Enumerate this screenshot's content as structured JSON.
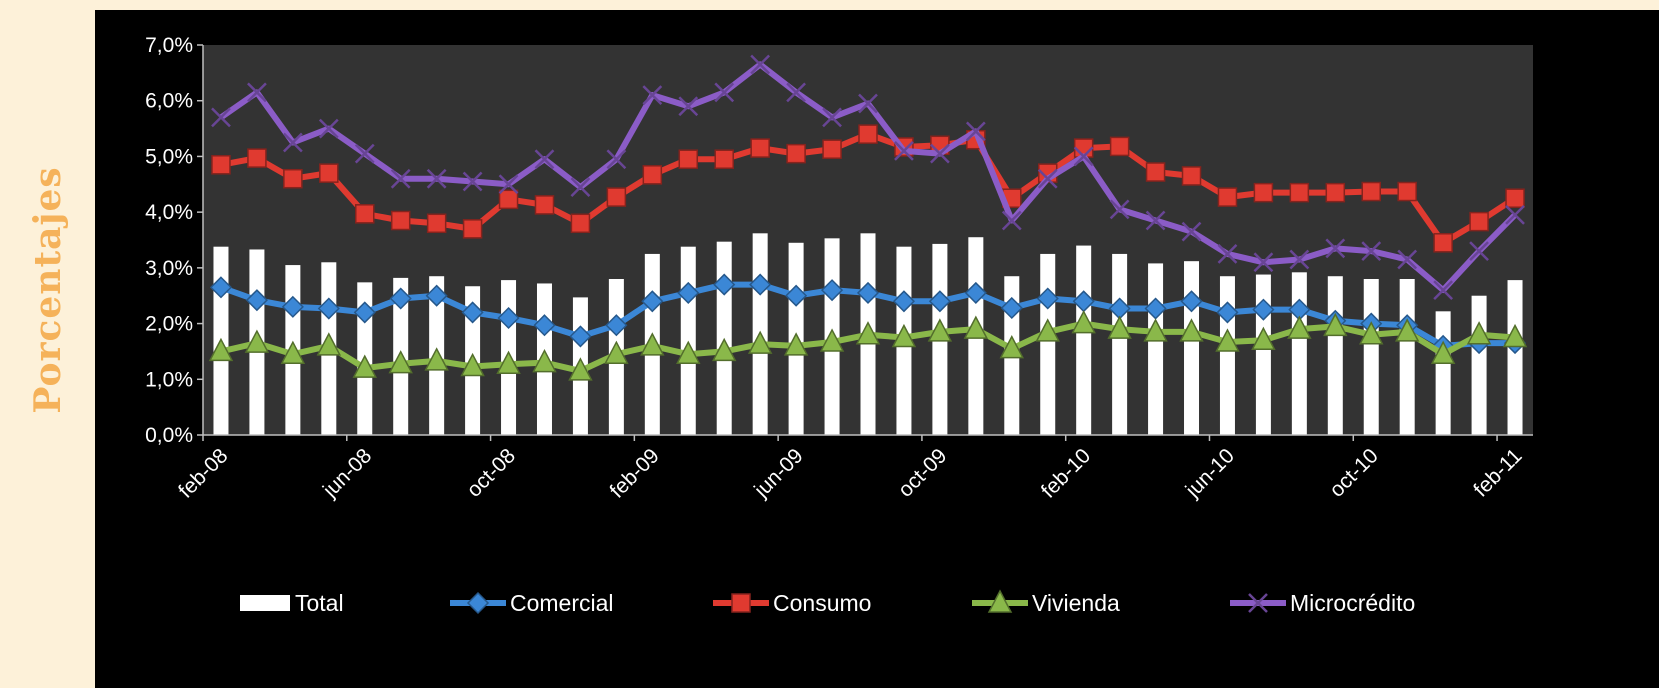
{
  "y_axis_title": "Porcentajes",
  "chart_data": {
    "type": "bar+line",
    "ylabel": "Porcentajes",
    "ylim": [
      0,
      7
    ],
    "y_ticks": [
      "0,0%",
      "1,0%",
      "2,0%",
      "3,0%",
      "4,0%",
      "5,0%",
      "6,0%",
      "7,0%"
    ],
    "categories": [
      "feb-08",
      "mar-08",
      "abr-08",
      "may-08",
      "jun-08",
      "jul-08",
      "ago-08",
      "sep-08",
      "oct-08",
      "nov-08",
      "dic-08",
      "ene-09",
      "feb-09",
      "mar-09",
      "abr-09",
      "may-09",
      "jun-09",
      "jul-09",
      "ago-09",
      "sep-09",
      "oct-09",
      "nov-09",
      "dic-09",
      "ene-10",
      "feb-10",
      "mar-10",
      "abr-10",
      "may-10",
      "jun-10",
      "jul-10",
      "ago-10",
      "sep-10",
      "oct-10",
      "nov-10",
      "dic-10",
      "ene-11",
      "feb-11"
    ],
    "x_tick_labels": [
      "feb-08",
      "jun-08",
      "oct-08",
      "feb-09",
      "jun-09",
      "oct-09",
      "feb-10",
      "jun-10",
      "oct-10",
      "feb-11"
    ],
    "legend_position": "bottom",
    "grid": false,
    "series": [
      {
        "name": "Total",
        "kind": "bar",
        "color": "#ffffff",
        "values": [
          3.38,
          3.33,
          3.05,
          3.1,
          2.74,
          2.82,
          2.85,
          2.67,
          2.78,
          2.72,
          2.47,
          2.8,
          3.25,
          3.38,
          3.47,
          3.62,
          3.45,
          3.53,
          3.62,
          3.38,
          3.43,
          3.55,
          2.85,
          3.25,
          3.4,
          3.25,
          3.08,
          3.12,
          2.85,
          2.88,
          2.92,
          2.85,
          2.8,
          2.8,
          2.22,
          2.5,
          2.78
        ]
      },
      {
        "name": "Comercial",
        "kind": "line",
        "marker": "diamond",
        "color": "#3b87d6",
        "values": [
          2.65,
          2.42,
          2.3,
          2.27,
          2.2,
          2.45,
          2.5,
          2.2,
          2.1,
          1.97,
          1.77,
          1.97,
          2.4,
          2.55,
          2.7,
          2.7,
          2.5,
          2.6,
          2.55,
          2.4,
          2.4,
          2.55,
          2.28,
          2.45,
          2.4,
          2.27,
          2.27,
          2.4,
          2.2,
          2.25,
          2.25,
          2.05,
          2.0,
          1.97,
          1.6,
          1.65,
          1.65
        ]
      },
      {
        "name": "Consumo",
        "kind": "line",
        "marker": "square",
        "color": "#e03a30",
        "values": [
          4.85,
          4.97,
          4.6,
          4.7,
          3.97,
          3.85,
          3.8,
          3.7,
          4.23,
          4.13,
          3.8,
          4.27,
          4.67,
          4.95,
          4.95,
          5.15,
          5.05,
          5.13,
          5.4,
          5.17,
          5.2,
          5.3,
          4.25,
          4.7,
          5.15,
          5.18,
          4.72,
          4.65,
          4.27,
          4.35,
          4.35,
          4.35,
          4.37,
          4.37,
          3.45,
          3.83,
          4.25
        ]
      },
      {
        "name": "Vivienda",
        "kind": "line",
        "marker": "triangle",
        "color": "#8ab84a",
        "values": [
          1.5,
          1.65,
          1.45,
          1.6,
          1.2,
          1.28,
          1.33,
          1.23,
          1.27,
          1.3,
          1.15,
          1.45,
          1.6,
          1.45,
          1.5,
          1.63,
          1.6,
          1.67,
          1.8,
          1.75,
          1.85,
          1.9,
          1.55,
          1.85,
          2.0,
          1.9,
          1.85,
          1.85,
          1.67,
          1.7,
          1.9,
          1.95,
          1.8,
          1.85,
          1.45,
          1.8,
          1.75
        ]
      },
      {
        "name": "Microcrédito",
        "kind": "line",
        "marker": "x",
        "color": "#8b5cc7",
        "values": [
          5.7,
          6.15,
          5.25,
          5.5,
          5.05,
          4.6,
          4.6,
          4.55,
          4.5,
          4.95,
          4.45,
          4.95,
          6.1,
          5.9,
          6.15,
          6.65,
          6.15,
          5.7,
          5.95,
          5.1,
          5.05,
          5.45,
          3.85,
          4.6,
          5.0,
          4.05,
          3.85,
          3.65,
          3.25,
          3.1,
          3.15,
          3.35,
          3.3,
          3.15,
          2.6,
          3.3,
          3.95
        ]
      }
    ]
  }
}
